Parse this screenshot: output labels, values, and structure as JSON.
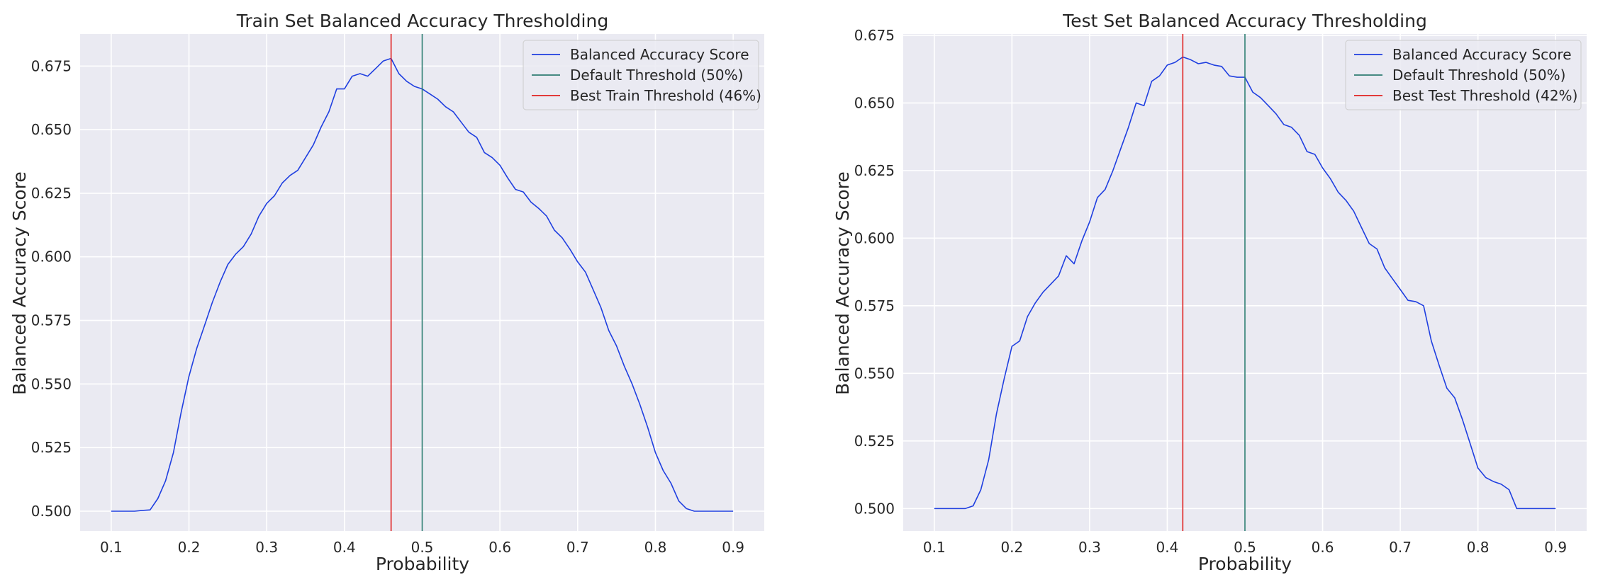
{
  "chart_data": [
    {
      "type": "line",
      "title": "Train Set Balanced Accuracy Thresholding",
      "xlabel": "Probability",
      "ylabel": "Balanced Accuracy Score",
      "xlim": [
        0.06,
        0.94
      ],
      "ylim": [
        0.4922,
        0.6876
      ],
      "xticks": [
        0.1,
        0.2,
        0.3,
        0.4,
        0.5,
        0.6,
        0.7,
        0.8,
        0.9
      ],
      "xtick_labels": [
        "0.1",
        "0.2",
        "0.3",
        "0.4",
        "0.5",
        "0.6",
        "0.7",
        "0.8",
        "0.9"
      ],
      "yticks": [
        0.5,
        0.525,
        0.55,
        0.575,
        0.6,
        0.625,
        0.65,
        0.675
      ],
      "ytick_labels": [
        "0.500",
        "0.525",
        "0.550",
        "0.575",
        "0.600",
        "0.625",
        "0.650",
        "0.675"
      ],
      "grid": true,
      "legend_position": "top-right",
      "legend": [
        "Balanced Accuracy Score",
        "Default Threshold (50%)",
        "Best Train Threshold (46%)"
      ],
      "series": [
        {
          "name": "Balanced Accuracy Score",
          "color": "#1f3fe0",
          "x": [
            0.1,
            0.11,
            0.12,
            0.13,
            0.14,
            0.15,
            0.16,
            0.17,
            0.18,
            0.19,
            0.2,
            0.21,
            0.22,
            0.23,
            0.24,
            0.25,
            0.26,
            0.27,
            0.28,
            0.29,
            0.3,
            0.31,
            0.32,
            0.33,
            0.34,
            0.35,
            0.36,
            0.37,
            0.38,
            0.39,
            0.4,
            0.41,
            0.42,
            0.43,
            0.44,
            0.45,
            0.46,
            0.47,
            0.48,
            0.49,
            0.5,
            0.51,
            0.52,
            0.53,
            0.54,
            0.55,
            0.56,
            0.57,
            0.58,
            0.59,
            0.6,
            0.61,
            0.62,
            0.63,
            0.64,
            0.65,
            0.66,
            0.67,
            0.68,
            0.69,
            0.7,
            0.71,
            0.72,
            0.73,
            0.74,
            0.75,
            0.76,
            0.77,
            0.78,
            0.79,
            0.8,
            0.81,
            0.82,
            0.83,
            0.84,
            0.85,
            0.86,
            0.87,
            0.88,
            0.89,
            0.9
          ],
          "values": [
            0.5,
            0.5,
            0.5,
            0.5,
            0.5003,
            0.5005,
            0.505,
            0.512,
            0.523,
            0.539,
            0.553,
            0.564,
            0.573,
            0.582,
            0.59,
            0.597,
            0.601,
            0.604,
            0.609,
            0.616,
            0.621,
            0.624,
            0.629,
            0.632,
            0.634,
            0.639,
            0.644,
            0.651,
            0.657,
            0.666,
            0.666,
            0.671,
            0.672,
            0.671,
            0.674,
            0.677,
            0.678,
            0.672,
            0.669,
            0.667,
            0.666,
            0.664,
            0.662,
            0.659,
            0.657,
            0.653,
            0.649,
            0.647,
            0.641,
            0.639,
            0.636,
            0.631,
            0.6265,
            0.6255,
            0.6215,
            0.619,
            0.616,
            0.6105,
            0.6075,
            0.603,
            0.598,
            0.594,
            0.587,
            0.58,
            0.571,
            0.565,
            0.557,
            0.55,
            0.542,
            0.533,
            0.523,
            0.516,
            0.511,
            0.504,
            0.501,
            0.5,
            0.5,
            0.5,
            0.5,
            0.5,
            0.5
          ]
        },
        {
          "name": "Default Threshold (50%)",
          "color": "#2e7d72",
          "vline": 0.5
        },
        {
          "name": "Best Train Threshold (46%)",
          "color": "#e02020",
          "vline": 0.46
        }
      ]
    },
    {
      "type": "line",
      "title": "Test Set Balanced Accuracy Thresholding",
      "xlabel": "Probability",
      "ylabel": "Balanced Accuracy Score",
      "xlim": [
        0.06,
        0.94
      ],
      "ylim": [
        0.4917,
        0.6755
      ],
      "xticks": [
        0.1,
        0.2,
        0.3,
        0.4,
        0.5,
        0.6,
        0.7,
        0.8,
        0.9
      ],
      "xtick_labels": [
        "0.1",
        "0.2",
        "0.3",
        "0.4",
        "0.5",
        "0.6",
        "0.7",
        "0.8",
        "0.9"
      ],
      "yticks": [
        0.5,
        0.525,
        0.55,
        0.575,
        0.6,
        0.625,
        0.65,
        0.675
      ],
      "ytick_labels": [
        "0.500",
        "0.525",
        "0.550",
        "0.575",
        "0.600",
        "0.625",
        "0.650",
        "0.675"
      ],
      "grid": true,
      "legend_position": "top-right",
      "legend": [
        "Balanced Accuracy Score",
        "Default Threshold (50%)",
        "Best Test Threshold (42%)"
      ],
      "series": [
        {
          "name": "Balanced Accuracy Score",
          "color": "#1f3fe0",
          "x": [
            0.1,
            0.11,
            0.12,
            0.13,
            0.14,
            0.15,
            0.16,
            0.17,
            0.18,
            0.19,
            0.2,
            0.21,
            0.22,
            0.23,
            0.24,
            0.25,
            0.26,
            0.27,
            0.28,
            0.29,
            0.3,
            0.31,
            0.32,
            0.33,
            0.34,
            0.35,
            0.36,
            0.37,
            0.38,
            0.39,
            0.4,
            0.41,
            0.42,
            0.43,
            0.44,
            0.45,
            0.46,
            0.47,
            0.48,
            0.49,
            0.5,
            0.51,
            0.52,
            0.53,
            0.54,
            0.55,
            0.56,
            0.57,
            0.58,
            0.59,
            0.6,
            0.61,
            0.62,
            0.63,
            0.64,
            0.65,
            0.66,
            0.67,
            0.68,
            0.69,
            0.7,
            0.71,
            0.72,
            0.73,
            0.74,
            0.75,
            0.76,
            0.77,
            0.78,
            0.79,
            0.8,
            0.81,
            0.82,
            0.83,
            0.84,
            0.85,
            0.86,
            0.87,
            0.88,
            0.89,
            0.9
          ],
          "values": [
            0.5,
            0.5,
            0.5,
            0.5,
            0.5,
            0.501,
            0.507,
            0.518,
            0.535,
            0.548,
            0.56,
            0.562,
            0.571,
            0.576,
            0.58,
            0.583,
            0.586,
            0.5935,
            0.5905,
            0.599,
            0.606,
            0.615,
            0.618,
            0.625,
            0.633,
            0.641,
            0.65,
            0.649,
            0.658,
            0.66,
            0.664,
            0.665,
            0.667,
            0.666,
            0.6645,
            0.665,
            0.664,
            0.6635,
            0.66,
            0.6595,
            0.6595,
            0.654,
            0.652,
            0.649,
            0.646,
            0.642,
            0.641,
            0.638,
            0.632,
            0.631,
            0.626,
            0.622,
            0.617,
            0.614,
            0.61,
            0.604,
            0.598,
            0.596,
            0.589,
            0.585,
            0.581,
            0.577,
            0.5765,
            0.575,
            0.562,
            0.553,
            0.5445,
            0.541,
            0.533,
            0.524,
            0.515,
            0.5115,
            0.51,
            0.509,
            0.507,
            0.5,
            0.5,
            0.5,
            0.5,
            0.5,
            0.5
          ]
        },
        {
          "name": "Default Threshold (50%)",
          "color": "#2e7d72",
          "vline": 0.5
        },
        {
          "name": "Best Test Threshold (42%)",
          "color": "#e02020",
          "vline": 0.42
        }
      ]
    }
  ]
}
